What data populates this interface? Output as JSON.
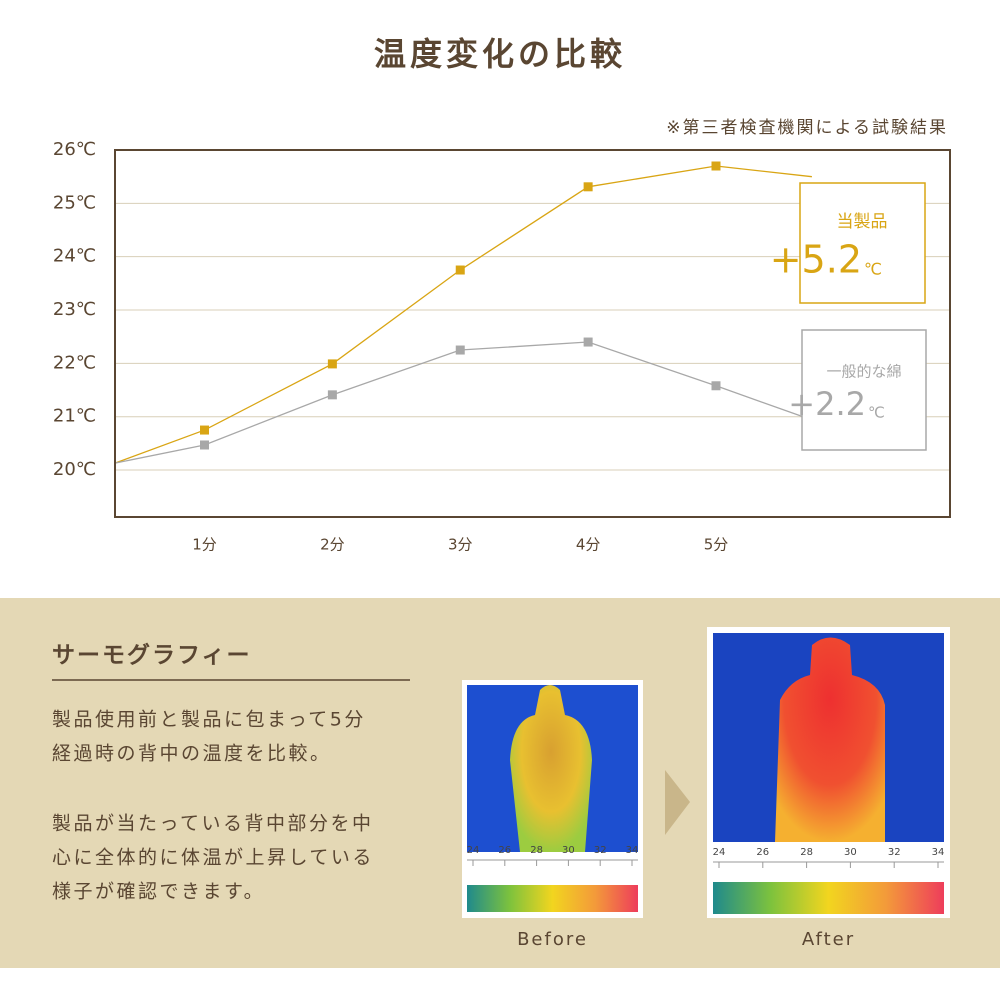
{
  "chart_data": {
    "type": "line",
    "title": "温度変化の比較",
    "note": "※第三者検査機関による試験結果",
    "x": [
      0.3,
      1,
      2,
      3,
      4,
      5,
      5.75
    ],
    "xlim": [
      0.3,
      6.83
    ],
    "xticks": [
      {
        "value": 1,
        "label": "1分"
      },
      {
        "value": 2,
        "label": "2分"
      },
      {
        "value": 3,
        "label": "3分"
      },
      {
        "value": 4,
        "label": "4分"
      },
      {
        "value": 5,
        "label": "5分"
      }
    ],
    "ylim": [
      19.12,
      26
    ],
    "yticks": [
      {
        "value": 20,
        "label": "20℃"
      },
      {
        "value": 21,
        "label": "21℃"
      },
      {
        "value": 22,
        "label": "22℃"
      },
      {
        "value": 23,
        "label": "23℃"
      },
      {
        "value": 24,
        "label": "24℃"
      },
      {
        "value": 25,
        "label": "25℃"
      },
      {
        "value": 26,
        "label": "26℃"
      }
    ],
    "grid": true,
    "series": [
      {
        "name": "当製品",
        "color": "#d9a514",
        "values": [
          20.13,
          20.75,
          21.99,
          23.75,
          25.31,
          25.7,
          25.5
        ],
        "change": "+5.2",
        "unit": "℃"
      },
      {
        "name": "一般的な綿",
        "color": "#a8a8a8",
        "values": [
          20.13,
          20.47,
          21.41,
          22.25,
          22.4,
          21.58,
          20.94
        ],
        "change": "+2.2",
        "unit": "℃"
      }
    ]
  },
  "thermography": {
    "heading": "サーモグラフィー",
    "paragraphs": [
      [
        "製品使用前と製品に包まって5分",
        "経過時の背中の温度を比較。"
      ],
      [
        "製品が当たっている背中部分を中",
        "心に全体的に体温が上昇している",
        "様子が確認できます。"
      ]
    ],
    "scale": [
      24,
      26,
      28,
      30,
      32,
      34
    ],
    "images": [
      {
        "caption": "Before"
      },
      {
        "caption": "After"
      }
    ]
  }
}
